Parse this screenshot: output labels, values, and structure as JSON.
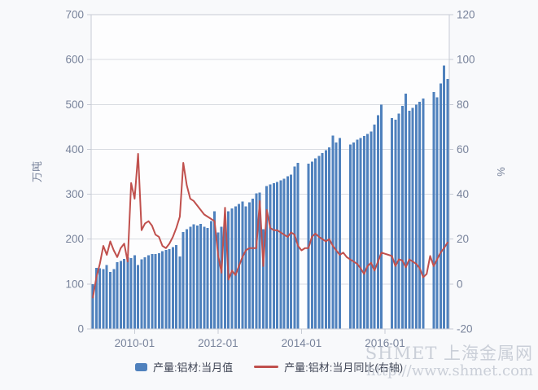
{
  "watermark": {
    "line1": "SHMET 上海金属网",
    "line2": "http://www.shmet.com"
  },
  "colors": {
    "bar": "#4f81bd",
    "line": "#c0504d",
    "grid": "#d9dce2",
    "plot_border": "#c7ccd5",
    "axis_text": "#78839b",
    "plot_bg": "#fdfdfe"
  },
  "chart_data": {
    "type": "bar",
    "title": "",
    "left_axis": {
      "title": "万吨",
      "min": 0,
      "max": 700,
      "ticks": [
        0,
        100,
        200,
        300,
        400,
        500,
        600,
        700
      ]
    },
    "right_axis": {
      "title": "%",
      "min": -20,
      "max": 120,
      "ticks": [
        -20,
        0,
        20,
        40,
        60,
        80,
        100,
        120
      ]
    },
    "x_axis": {
      "tick_labels": [
        "2010-01",
        "2012-01",
        "2014-01",
        "2016-01"
      ]
    },
    "grid": true,
    "legend_position": "bottom",
    "categories": [
      "2009-01",
      "2009-02",
      "2009-03",
      "2009-04",
      "2009-05",
      "2009-06",
      "2009-07",
      "2009-08",
      "2009-09",
      "2009-10",
      "2009-11",
      "2009-12",
      "2010-01",
      "2010-02",
      "2010-03",
      "2010-04",
      "2010-05",
      "2010-06",
      "2010-07",
      "2010-08",
      "2010-09",
      "2010-10",
      "2010-11",
      "2010-12",
      "2011-01",
      "2011-02",
      "2011-03",
      "2011-04",
      "2011-05",
      "2011-06",
      "2011-07",
      "2011-08",
      "2011-09",
      "2011-10",
      "2011-11",
      "2011-12",
      "2012-01",
      "2012-02",
      "2012-03",
      "2012-04",
      "2012-05",
      "2012-06",
      "2012-07",
      "2012-08",
      "2012-09",
      "2012-10",
      "2012-11",
      "2012-12",
      "2013-01",
      "2013-02",
      "2013-03",
      "2013-04",
      "2013-05",
      "2013-06",
      "2013-07",
      "2013-08",
      "2013-09",
      "2013-10",
      "2013-11",
      "2013-12",
      "2014-01",
      "2014-02",
      "2014-03",
      "2014-04",
      "2014-05",
      "2014-06",
      "2014-07",
      "2014-08",
      "2014-09",
      "2014-10",
      "2014-11",
      "2014-12",
      "2015-01",
      "2015-02",
      "2015-03",
      "2015-04",
      "2015-05",
      "2015-06",
      "2015-07",
      "2015-08",
      "2015-09",
      "2015-10",
      "2015-11",
      "2015-12",
      "2016-01",
      "2016-02",
      "2016-03",
      "2016-04",
      "2016-05",
      "2016-06",
      "2016-07",
      "2016-08",
      "2016-09",
      "2016-10",
      "2016-11",
      "2016-12",
      "2017-01",
      "2017-02",
      "2017-03",
      "2017-04",
      "2017-05",
      "2017-06",
      "2017-07"
    ],
    "series": [
      {
        "name": "产量:铝材:当月值",
        "type": "bar",
        "axis": "left",
        "color": "#4f81bd",
        "values": [
          100,
          136,
          135,
          133,
          142,
          127,
          133,
          149,
          151,
          156,
          160,
          158,
          164,
          142,
          155,
          160,
          164,
          167,
          167,
          169,
          173,
          176,
          178,
          182,
          187,
          161,
          216,
          222,
          228,
          233,
          230,
          234,
          228,
          225,
          240,
          262,
          215,
          228,
          248,
          262,
          268,
          273,
          278,
          284,
          273,
          282,
          290,
          302,
          304,
          222,
          318,
          322,
          325,
          327,
          331,
          335,
          340,
          344,
          362,
          370,
          null,
          null,
          368,
          373,
          380,
          385,
          392,
          398,
          404,
          431,
          415,
          425,
          null,
          null,
          411,
          415,
          422,
          425,
          430,
          434,
          440,
          455,
          476,
          500,
          null,
          null,
          470,
          466,
          480,
          497,
          524,
          486,
          492,
          500,
          506,
          513,
          null,
          null,
          528,
          516,
          547,
          587,
          557
        ]
      },
      {
        "name": "产量:铝材:当月同比(右轴)",
        "type": "line",
        "axis": "right",
        "color": "#c0504d",
        "values": [
          -6,
          3,
          9,
          17,
          13,
          19,
          15,
          12,
          16,
          18,
          10,
          45,
          38,
          58,
          24,
          27,
          28,
          26,
          22,
          21,
          17,
          16,
          18,
          21,
          25,
          30,
          54,
          44,
          38,
          37,
          35,
          33,
          31,
          30,
          29,
          28,
          13,
          5,
          34,
          2,
          6,
          4,
          8,
          12,
          15,
          16,
          16,
          16,
          37,
          8,
          33,
          25,
          24,
          24,
          23,
          22,
          21,
          23,
          22,
          17,
          15,
          16,
          16,
          21,
          22.5,
          21,
          20,
          19,
          20,
          17,
          15,
          13,
          14,
          12,
          11,
          10,
          9,
          7,
          4.5,
          8,
          9.5,
          6,
          10,
          14,
          13.5,
          13,
          12.5,
          8,
          11,
          10.5,
          7.5,
          11,
          10,
          9,
          7,
          3,
          4.5,
          12.5,
          8,
          11,
          14,
          16,
          18.5
        ]
      }
    ]
  }
}
